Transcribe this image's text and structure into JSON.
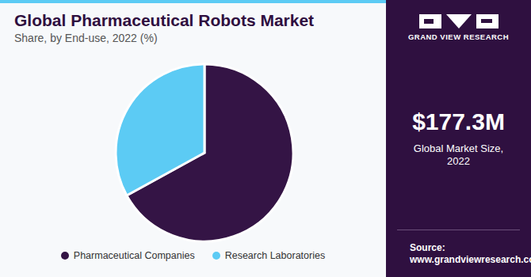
{
  "chart_data": {
    "type": "pie",
    "title": "Global Pharmaceutical Robots Market",
    "subtitle": "Share, by End-use, 2022 (%)",
    "categories": [
      "Pharmaceutical Companies",
      "Research Laboratories"
    ],
    "values": [
      67,
      33
    ],
    "colors": [
      "#341445",
      "#5ccbf4"
    ],
    "legend": "bottom"
  },
  "sidebar": {
    "brand": "GRAND VIEW RESEARCH",
    "market_size": "$177.3M",
    "market_size_label": "Global Market Size, 2022",
    "source_label": "Source:",
    "source_url": "www.grandviewresearch.com"
  }
}
